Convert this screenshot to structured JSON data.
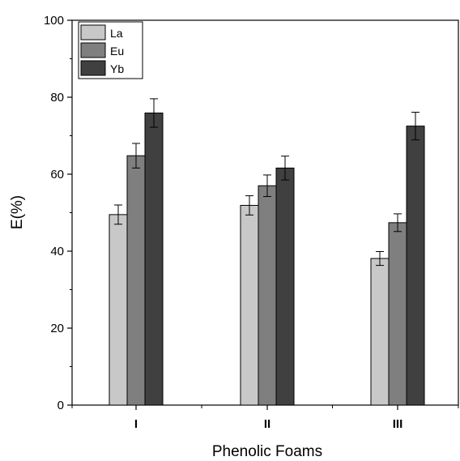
{
  "chart_data": {
    "type": "bar",
    "xlabel": "Phenolic Foams",
    "ylabel": "E(%)",
    "categories": [
      "I",
      "II",
      "III"
    ],
    "ylim": [
      0,
      100
    ],
    "yticks": [
      0,
      20,
      40,
      60,
      80,
      100
    ],
    "series": [
      {
        "name": "La",
        "values": [
          49.5,
          51.9,
          38.1
        ],
        "errors": [
          2.5,
          2.5,
          1.8
        ],
        "color": "#c8c8c8"
      },
      {
        "name": "Eu",
        "values": [
          64.8,
          57.0,
          47.4
        ],
        "errors": [
          3.2,
          2.8,
          2.3
        ],
        "color": "#7f7f7f"
      },
      {
        "name": "Yb",
        "values": [
          75.9,
          61.6,
          72.5
        ],
        "errors": [
          3.7,
          3.1,
          3.6
        ],
        "color": "#404040"
      }
    ],
    "legend_position": "top-left",
    "grid": false
  }
}
